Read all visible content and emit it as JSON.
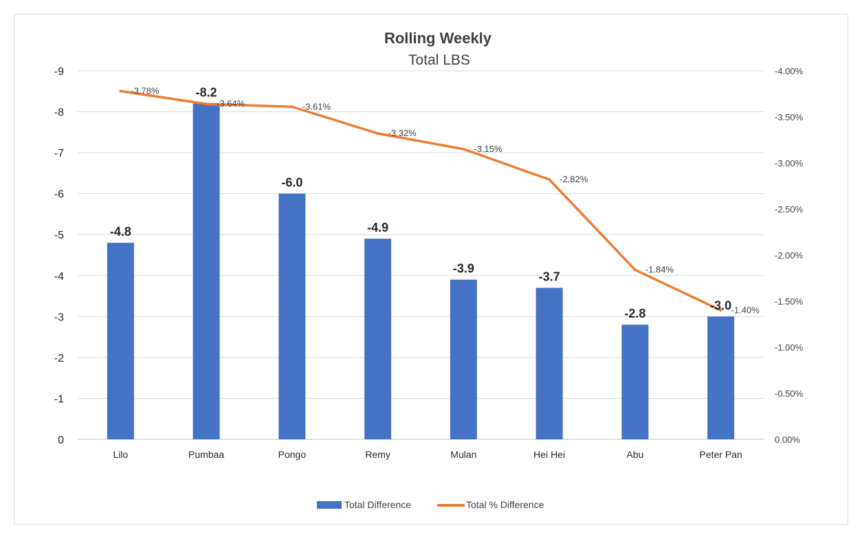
{
  "chart_data": {
    "type": "bar",
    "title": "Rolling Weekly",
    "subtitle": "Total LBS",
    "categories": [
      "Lilo",
      "Pumbaa",
      "Pongo",
      "Remy",
      "Mulan",
      "Hei Hei",
      "Abu",
      "Peter Pan"
    ],
    "series": [
      {
        "name": "Total Difference",
        "type": "bar",
        "axis": "left",
        "color": "#4472c4",
        "values": [
          -4.8,
          -8.2,
          -6.0,
          -4.9,
          -3.9,
          -3.7,
          -2.8,
          -3.0
        ],
        "labels": [
          "-4.8",
          "-8.2",
          "-6.0",
          "-4.9",
          "-3.9",
          "-3.7",
          "-2.8",
          "-3.0"
        ]
      },
      {
        "name": "Total % Difference",
        "type": "line",
        "axis": "right",
        "color": "#ed7d31",
        "values": [
          -3.78,
          -3.64,
          -3.61,
          -3.32,
          -3.15,
          -2.82,
          -1.84,
          -1.4
        ],
        "labels": [
          "-3.78%",
          "-3.64%",
          "-3.61%",
          "-3.32%",
          "-3.15%",
          "-2.82%",
          "-1.84%",
          "-1.40%"
        ]
      }
    ],
    "y_left": {
      "range": [
        0,
        -9
      ],
      "reversed": true,
      "ticks": [
        "0",
        "-1",
        "-2",
        "-3",
        "-4",
        "-5",
        "-6",
        "-7",
        "-8",
        "-9"
      ]
    },
    "y_right": {
      "range": [
        0,
        -4.0
      ],
      "reversed": true,
      "ticks": [
        "0.00%",
        "-0.50%",
        "-1.00%",
        "-1.50%",
        "-2.00%",
        "-2.50%",
        "-3.00%",
        "-3.50%",
        "-4.00%"
      ]
    },
    "grid": true,
    "legend": "bottom"
  }
}
